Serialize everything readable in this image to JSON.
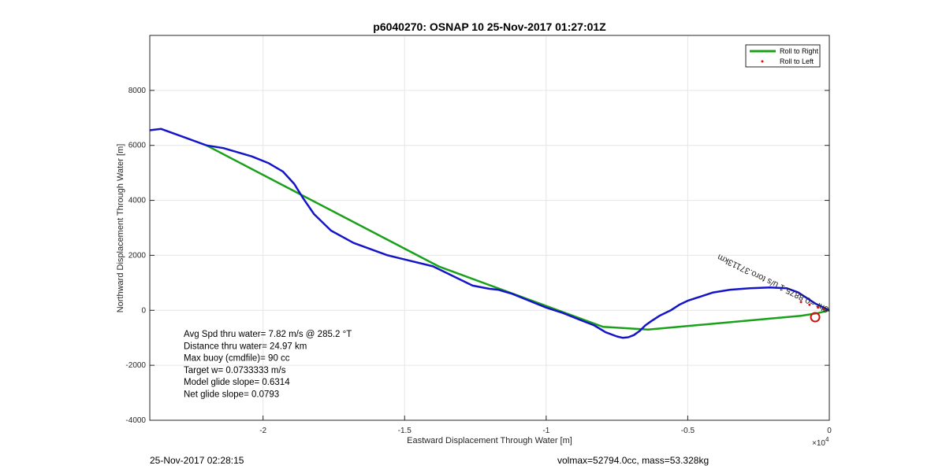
{
  "chart_data": {
    "type": "line",
    "title": "p6040270: OSNAP 10 25-Nov-2017 01:27:01Z",
    "xlabel": "Eastward Displacement Through Water [m]",
    "ylabel": "Northward Displacement Through Water [m]",
    "x_exponent_label": "×10",
    "x_exponent_power": "4",
    "xlim": [
      -24000,
      0
    ],
    "ylim": [
      -4000,
      10000
    ],
    "x_scale_display": 10000,
    "xticks": [
      -2,
      -1.5,
      -1,
      -0.5,
      0
    ],
    "xtick_labels": [
      "-2",
      "-1.5",
      "-1",
      "-0.5",
      "0"
    ],
    "yticks": [
      -4000,
      -2000,
      0,
      2000,
      4000,
      6000,
      8000
    ],
    "ytick_labels": [
      "-4000",
      "-2000",
      "0",
      "2000",
      "4000",
      "6000",
      "8000"
    ],
    "grid": true,
    "legend_position": "top-right",
    "series": [
      {
        "name": "Roll to Right",
        "color": "#1aa01a",
        "x": [
          -22000,
          -13800,
          -8000,
          -6400,
          -1000,
          -400,
          0
        ],
        "y": [
          6000,
          1600,
          -600,
          -700,
          -200,
          -100,
          0
        ]
      },
      {
        "name": "Roll to Left",
        "color": "#e01010",
        "x": [
          -1000,
          -700,
          -400,
          -200
        ],
        "y": [
          300,
          200,
          100,
          50
        ]
      },
      {
        "name": "",
        "color": "#1515c8",
        "x": [
          -24000,
          -23600,
          -22800,
          -22000,
          -21400,
          -20400,
          -19800,
          -19300,
          -18900,
          -18600,
          -18200,
          -17600,
          -16800,
          -15600,
          -14000,
          -13200,
          -12600,
          -12000,
          -11700,
          -11200,
          -10600,
          -10000,
          -9400,
          -8800,
          -8300,
          -7900,
          -7500,
          -7300,
          -7100,
          -6900,
          -6700,
          -6500,
          -6300,
          -6000,
          -5600,
          -5300,
          -5000,
          -4700,
          -4400,
          -4100,
          -3500,
          -2800,
          -2100,
          -1500,
          -1100,
          -800,
          -500,
          -200,
          0
        ],
        "y": [
          6550,
          6600,
          6300,
          6000,
          5900,
          5600,
          5350,
          5050,
          4600,
          4100,
          3500,
          2900,
          2450,
          2000,
          1600,
          1200,
          900,
          780,
          750,
          600,
          350,
          100,
          -100,
          -350,
          -550,
          -800,
          -950,
          -1000,
          -980,
          -900,
          -750,
          -550,
          -400,
          -200,
          0,
          200,
          350,
          450,
          550,
          650,
          750,
          800,
          830,
          800,
          650,
          450,
          250,
          100,
          0
        ]
      }
    ],
    "annotations": [
      {
        "text": "0.37113km",
        "x": -4000,
        "y": 2000,
        "angle": 28
      },
      {
        "text": "0.8875",
        "x": -2500,
        "y": 1400,
        "angle": 28
      },
      {
        "text": "8hr",
        "x": -2600,
        "y": 1500,
        "angle": 28
      }
    ],
    "rotated_label": "8hr =0.8875 1 u/s toro.37113km",
    "stats": [
      "Avg Spd thru water=  7.82 m/s @ 285.2 °T",
      "Distance thru water= 24.97 km",
      "Max buoy (cmdfile)= 90 cc",
      "Target w= 0.0733333 m/s",
      "Model glide slope= 0.6314",
      "Net glide slope= 0.0793"
    ],
    "target_marker": {
      "x": -500,
      "y": -250,
      "color": "#cc1010"
    }
  },
  "footer": {
    "left": "25-Nov-2017 02:28:15",
    "right": "volmax=52794.0cc, mass=53.328kg"
  }
}
